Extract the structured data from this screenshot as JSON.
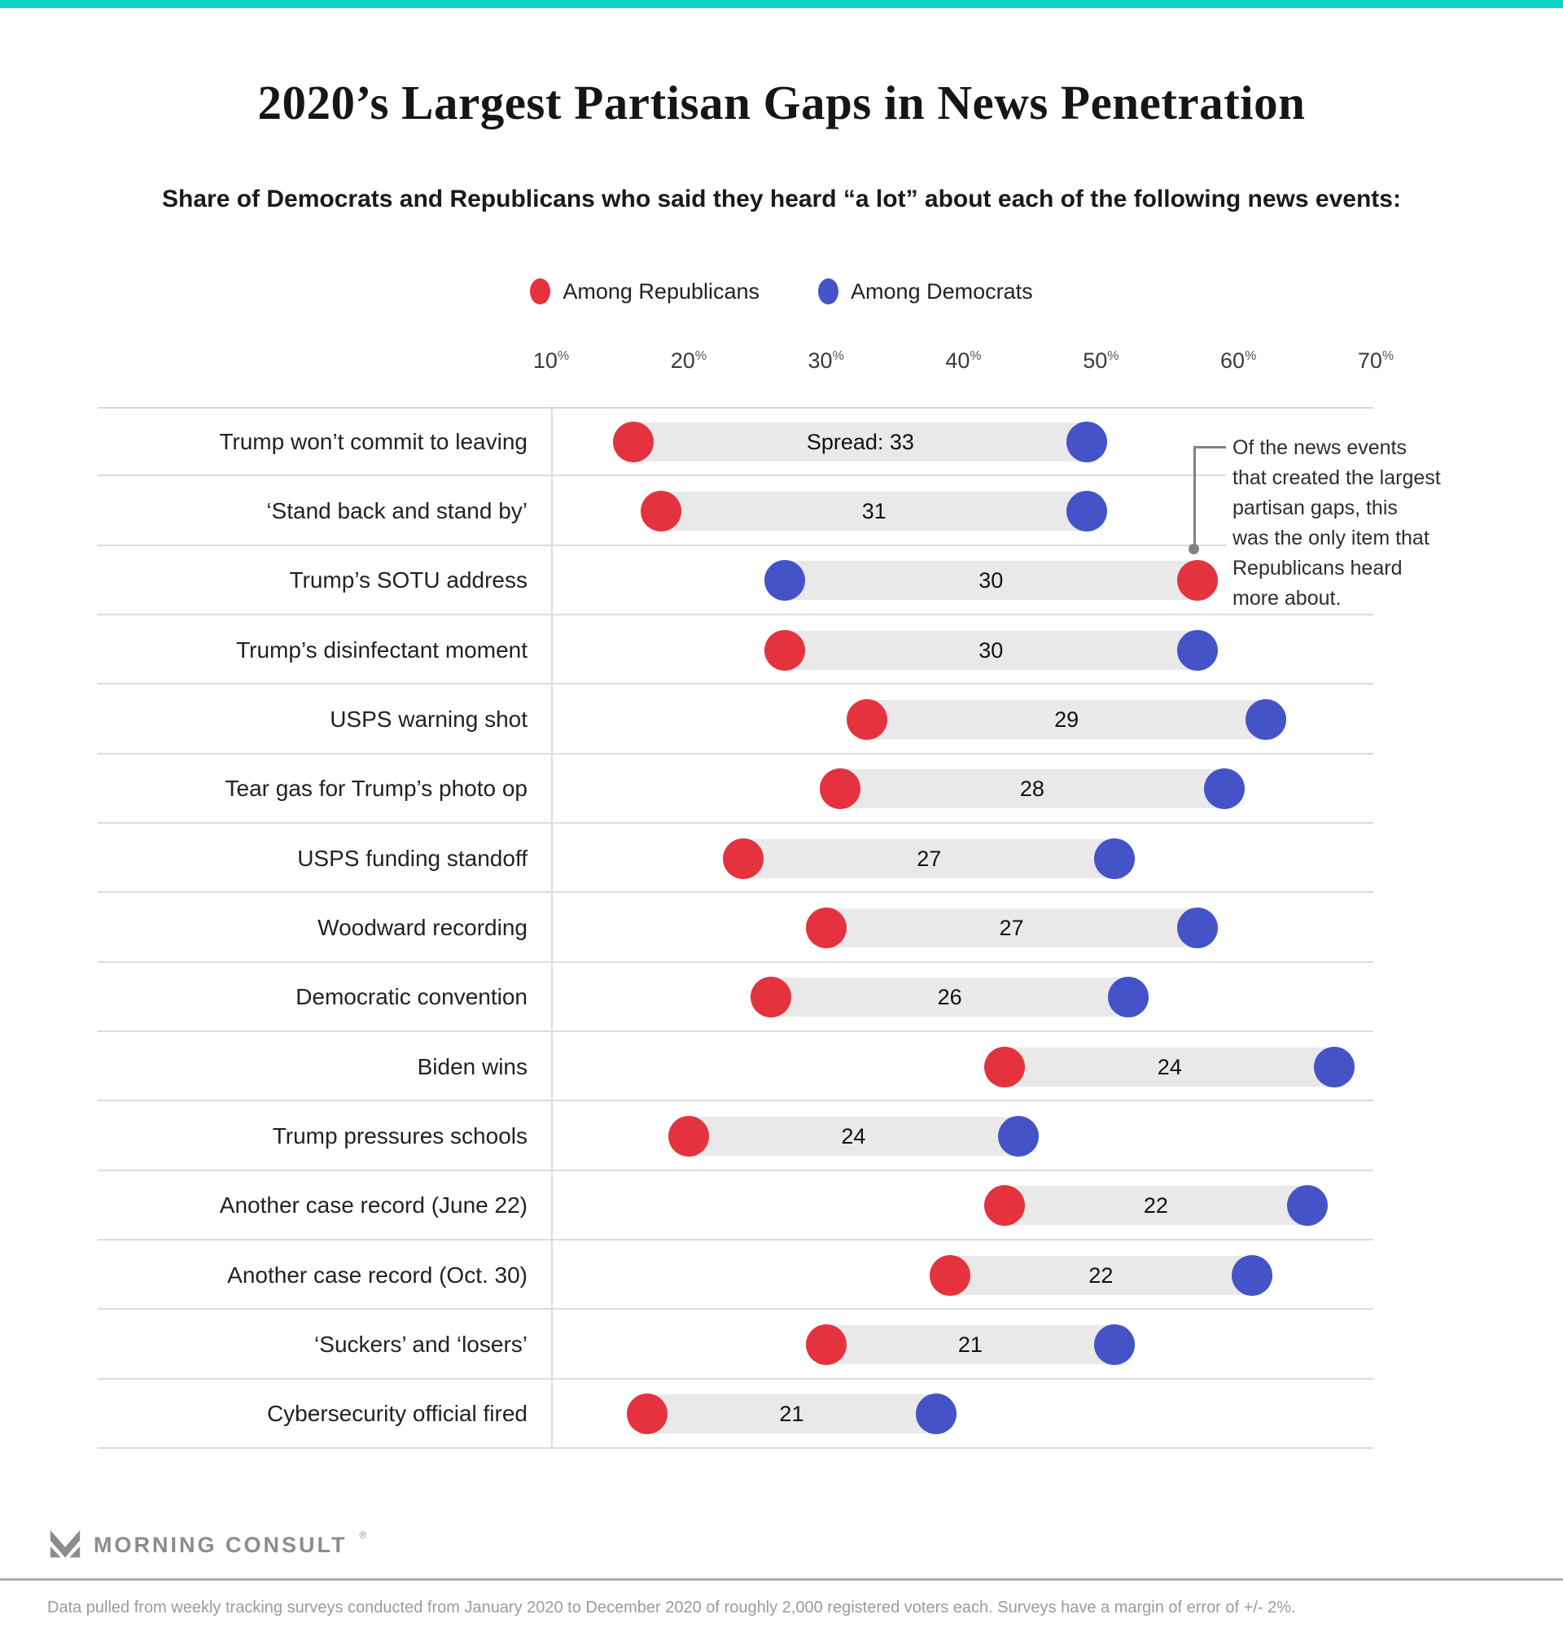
{
  "page": {
    "title": "2020’s Largest Partisan Gaps in News Penetration",
    "subtitle": "Share of Democrats and Republicans who said they heard “a lot” about each of the following news events:"
  },
  "colors": {
    "accent_teal": "#11d3c4",
    "republican_red": "#e4333f",
    "democrat_blue": "#4553c8",
    "bar_gray": "#e9e9e9",
    "grid_gray": "#dcdcdc",
    "annotation_gray": "#828282"
  },
  "chart_data": {
    "type": "dumbbell",
    "title": "2020’s Largest Partisan Gaps in News Penetration",
    "subtitle": "Share of Democrats and Republicans who said they heard “a lot” about each of the following news events:",
    "unit": "%",
    "legend": [
      {
        "name": "Among Republicans",
        "series_key": "republican",
        "color": "#e4333f"
      },
      {
        "name": "Among Democrats",
        "series_key": "democrat",
        "color": "#4553c8"
      }
    ],
    "x_axis": {
      "tick_values": [
        10,
        20,
        30,
        40,
        50,
        60,
        70
      ],
      "tick_suffix": "%",
      "min": 10,
      "max": 70,
      "grid": false
    },
    "legend_position": "top",
    "rows": [
      {
        "label": "Trump won’t commit to leaving",
        "republican": 16,
        "democrat": 49,
        "spread": 33,
        "spread_label": "Spread: 33"
      },
      {
        "label": "‘Stand back and stand by’",
        "republican": 18,
        "democrat": 49,
        "spread": 31,
        "spread_label": "31"
      },
      {
        "label": "Trump’s SOTU address",
        "republican": 57,
        "democrat": 27,
        "spread": 30,
        "spread_label": "30"
      },
      {
        "label": "Trump’s disinfectant moment",
        "republican": 27,
        "democrat": 57,
        "spread": 30,
        "spread_label": "30"
      },
      {
        "label": "USPS warning shot",
        "republican": 33,
        "democrat": 62,
        "spread": 29,
        "spread_label": "29"
      },
      {
        "label": "Tear gas for Trump’s photo op",
        "republican": 31,
        "democrat": 59,
        "spread": 28,
        "spread_label": "28"
      },
      {
        "label": "USPS funding standoff",
        "republican": 24,
        "democrat": 51,
        "spread": 27,
        "spread_label": "27"
      },
      {
        "label": "Woodward recording",
        "republican": 30,
        "democrat": 57,
        "spread": 27,
        "spread_label": "27"
      },
      {
        "label": "Democratic convention",
        "republican": 26,
        "democrat": 52,
        "spread": 26,
        "spread_label": "26"
      },
      {
        "label": "Biden wins",
        "republican": 43,
        "democrat": 67,
        "spread": 24,
        "spread_label": "24"
      },
      {
        "label": "Trump pressures schools",
        "republican": 20,
        "democrat": 44,
        "spread": 24,
        "spread_label": "24"
      },
      {
        "label": "Another case record (June 22)",
        "republican": 43,
        "democrat": 65,
        "spread": 22,
        "spread_label": "22"
      },
      {
        "label": "Another case record (Oct. 30)",
        "republican": 39,
        "democrat": 61,
        "spread": 22,
        "spread_label": "22"
      },
      {
        "label": "‘Suckers’ and ‘losers’",
        "republican": 30,
        "democrat": 51,
        "spread": 21,
        "spread_label": "21"
      },
      {
        "label": "Cybersecurity official fired",
        "republican": 17,
        "democrat": 38,
        "spread": 21,
        "spread_label": "21"
      }
    ],
    "annotation": {
      "lines": [
        "Of the news events",
        "that created the largest",
        "partisan gaps, this",
        "was the only item that",
        "Republicans heard",
        "more about."
      ],
      "points_to_row": "Trump’s SOTU address"
    }
  },
  "footer": {
    "brand": "MORNING CONSULT",
    "reg": "®",
    "note": "Data pulled from weekly tracking surveys conducted from January 2020 to December 2020 of roughly 2,000 registered voters each. Surveys have a margin of error of +/- 2%."
  }
}
